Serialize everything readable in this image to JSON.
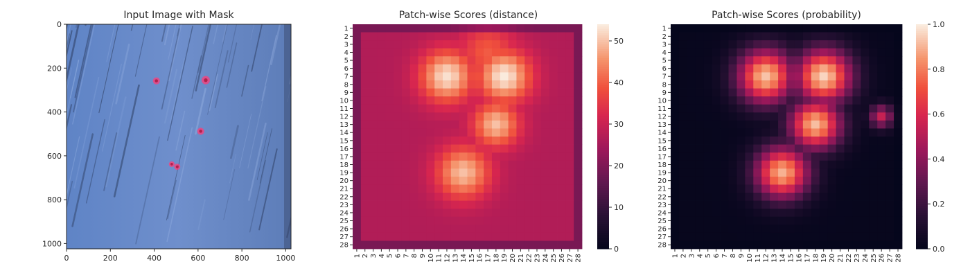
{
  "figure": {
    "panels": [
      {
        "id": "input",
        "title": "Input Image with Mask"
      },
      {
        "id": "distance",
        "title": "Patch-wise Scores (distance)"
      },
      {
        "id": "probability",
        "title": "Patch-wise Scores (probability)"
      }
    ]
  },
  "chart_data": [
    {
      "type": "image",
      "title": "Input Image with Mask",
      "xlim": [
        0,
        1024
      ],
      "ylim": [
        1024,
        0
      ],
      "x_ticks": [
        0,
        200,
        400,
        600,
        800,
        1000
      ],
      "y_ticks": [
        0,
        200,
        400,
        600,
        800,
        1000
      ],
      "background_color": "#6F8FCC",
      "mask_color": "#FF3C78",
      "mask_blobs": [
        {
          "x": 410,
          "y": 258,
          "r": 16
        },
        {
          "x": 635,
          "y": 255,
          "r": 19
        },
        {
          "x": 612,
          "y": 488,
          "r": 16
        },
        {
          "x": 480,
          "y": 638,
          "r": 13
        },
        {
          "x": 505,
          "y": 650,
          "r": 14
        }
      ]
    },
    {
      "type": "heatmap",
      "title": "Patch-wise Scores (distance)",
      "rows": 28,
      "cols": 28,
      "x_labels": [
        "1",
        "2",
        "3",
        "4",
        "5",
        "6",
        "7",
        "8",
        "9",
        "10",
        "11",
        "12",
        "13",
        "14",
        "15",
        "16",
        "17",
        "18",
        "19",
        "20",
        "21",
        "22",
        "23",
        "24",
        "25",
        "26",
        "27",
        "28"
      ],
      "y_labels": [
        "1",
        "2",
        "3",
        "4",
        "5",
        "6",
        "7",
        "8",
        "9",
        "10",
        "11",
        "12",
        "13",
        "14",
        "15",
        "16",
        "17",
        "18",
        "19",
        "20",
        "21",
        "22",
        "23",
        "24",
        "25",
        "26",
        "27",
        "28"
      ],
      "colormap": "rocket",
      "vmin": 0,
      "vmax": 54,
      "colorbar_ticks": [
        0,
        10,
        20,
        30,
        40,
        50
      ],
      "base_value": 27,
      "hotspots": [
        {
          "row": 7,
          "col": 12,
          "value": 53,
          "spread": 2.3
        },
        {
          "row": 7,
          "col": 19,
          "value": 54,
          "spread": 2.3
        },
        {
          "row": 13,
          "col": 18,
          "value": 50,
          "spread": 2.0
        },
        {
          "row": 19,
          "col": 14,
          "value": 50,
          "spread": 2.3
        },
        {
          "row": 4,
          "col": 17,
          "value": 40,
          "spread": 2.5
        }
      ]
    },
    {
      "type": "heatmap",
      "title": "Patch-wise Scores (probability)",
      "rows": 28,
      "cols": 28,
      "x_labels": [
        "1",
        "2",
        "3",
        "4",
        "5",
        "6",
        "7",
        "8",
        "9",
        "10",
        "11",
        "12",
        "13",
        "14",
        "15",
        "16",
        "17",
        "18",
        "19",
        "20",
        "21",
        "22",
        "23",
        "24",
        "25",
        "26",
        "27",
        "28"
      ],
      "y_labels": [
        "1",
        "2",
        "3",
        "4",
        "5",
        "6",
        "7",
        "8",
        "9",
        "10",
        "11",
        "12",
        "13",
        "14",
        "15",
        "16",
        "17",
        "18",
        "19",
        "20",
        "21",
        "22",
        "23",
        "24",
        "25",
        "26",
        "27",
        "28"
      ],
      "colormap": "rocket",
      "vmin": 0.0,
      "vmax": 1.0,
      "colorbar_ticks": [
        0.0,
        0.2,
        0.4,
        0.6,
        0.8,
        1.0
      ],
      "colorbar_tick_labels": [
        "0.0",
        "0.2",
        "0.4",
        "0.6",
        "0.8",
        "1.0"
      ],
      "base_value": 0.02,
      "hotspots": [
        {
          "row": 7,
          "col": 12,
          "value": 0.93,
          "spread": 2.4
        },
        {
          "row": 7,
          "col": 19,
          "value": 0.96,
          "spread": 2.4
        },
        {
          "row": 13,
          "col": 18,
          "value": 0.92,
          "spread": 2.2
        },
        {
          "row": 19,
          "col": 14,
          "value": 0.9,
          "spread": 2.3
        },
        {
          "row": 12,
          "col": 26,
          "value": 0.55,
          "spread": 1.0
        }
      ]
    }
  ]
}
